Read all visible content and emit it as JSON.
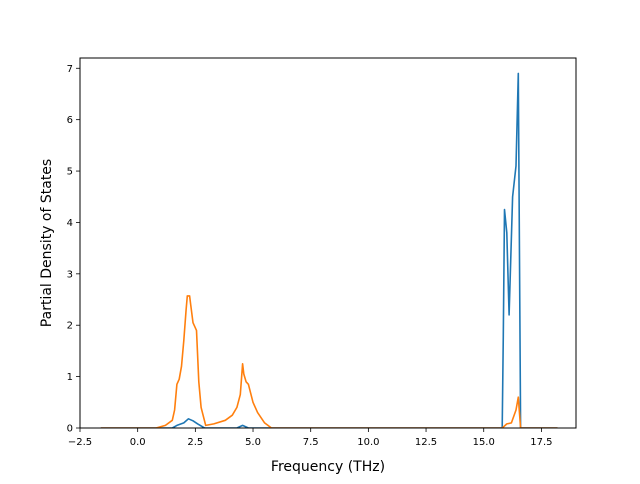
{
  "chart_data": {
    "type": "line",
    "title": "",
    "xlabel": "Frequency (THz)",
    "ylabel": "Partial Density of States",
    "xlim": [
      -2.5,
      19.0
    ],
    "ylim": [
      0,
      7.2
    ],
    "xticks": [
      -2.5,
      0.0,
      2.5,
      5.0,
      7.5,
      10.0,
      12.5,
      15.0,
      17.5
    ],
    "xtick_labels": [
      "−2.5",
      "0.0",
      "2.5",
      "5.0",
      "7.5",
      "10.0",
      "12.5",
      "15.0",
      "17.5"
    ],
    "yticks": [
      0,
      1,
      2,
      3,
      4,
      5,
      6,
      7
    ],
    "ytick_labels": [
      "0",
      "1",
      "2",
      "3",
      "4",
      "5",
      "6",
      "7"
    ],
    "grid": false,
    "legend": false,
    "series": [
      {
        "color": "#1f77b4",
        "x": [
          -1.6,
          1.5,
          1.7,
          2.0,
          2.2,
          2.4,
          2.6,
          2.9,
          4.3,
          4.55,
          4.8,
          5.8,
          15.8,
          15.85,
          15.9,
          16.0,
          16.1,
          16.25,
          16.4,
          16.5,
          16.6,
          18.2
        ],
        "y": [
          0,
          0,
          0.05,
          0.1,
          0.18,
          0.14,
          0.08,
          0,
          0,
          0.05,
          0,
          0,
          0,
          1.8,
          4.25,
          3.8,
          2.2,
          4.5,
          5.1,
          6.9,
          0,
          0
        ]
      },
      {
        "color": "#ff7f0e",
        "x": [
          -1.6,
          0.8,
          1.2,
          1.5,
          1.6,
          1.7,
          1.8,
          1.9,
          2.0,
          2.1,
          2.15,
          2.25,
          2.3,
          2.4,
          2.55,
          2.65,
          2.75,
          2.95,
          3.3,
          3.8,
          4.1,
          4.3,
          4.45,
          4.55,
          4.6,
          4.7,
          4.8,
          5.0,
          5.2,
          5.5,
          5.8,
          6.0,
          15.8,
          16.0,
          16.2,
          16.4,
          16.5,
          16.6,
          18.2
        ],
        "y": [
          0,
          0,
          0.05,
          0.15,
          0.35,
          0.85,
          0.95,
          1.2,
          1.7,
          2.3,
          2.57,
          2.57,
          2.4,
          2.05,
          1.9,
          0.9,
          0.4,
          0.05,
          0.08,
          0.15,
          0.25,
          0.4,
          0.65,
          1.25,
          1.05,
          0.9,
          0.85,
          0.5,
          0.3,
          0.1,
          0,
          0,
          0,
          0.08,
          0.1,
          0.35,
          0.6,
          0,
          0
        ]
      }
    ]
  }
}
